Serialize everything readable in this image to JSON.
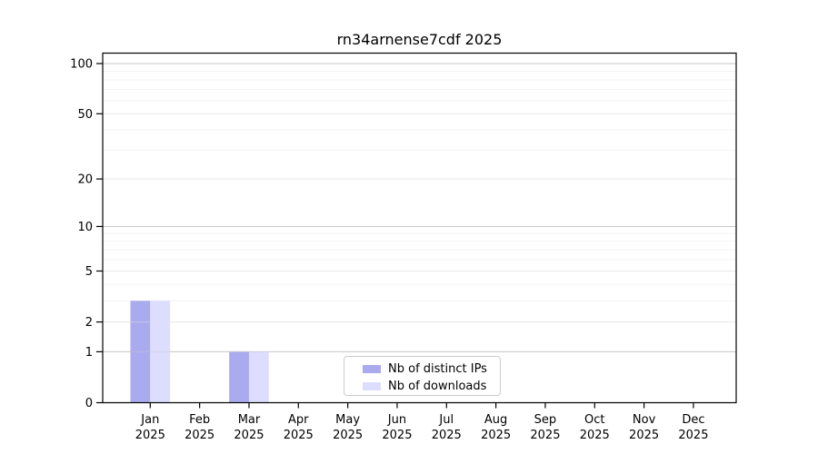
{
  "chart_data": {
    "type": "bar",
    "title": "rn34arnense7cdf 2025",
    "year": "2025",
    "categories": [
      "Jan",
      "Feb",
      "Mar",
      "Apr",
      "May",
      "Jun",
      "Jul",
      "Aug",
      "Sep",
      "Oct",
      "Nov",
      "Dec"
    ],
    "series": [
      {
        "name": "Nb of distinct IPs",
        "color": "#aaaaee",
        "values": [
          3,
          0,
          1,
          0,
          0,
          0,
          0,
          0,
          0,
          0,
          0,
          0
        ]
      },
      {
        "name": "Nb of downloads",
        "color": "#ddddff",
        "values": [
          3,
          0,
          1,
          0,
          0,
          0,
          0,
          0,
          0,
          0,
          0,
          0
        ]
      }
    ],
    "yscale": "log1p",
    "ylim": [
      0,
      116
    ],
    "yticks": [
      0,
      1,
      2,
      5,
      10,
      20,
      50,
      100
    ],
    "yminor": [
      3,
      4,
      6,
      7,
      8,
      9,
      30,
      40,
      60,
      70,
      80,
      90
    ],
    "grid": {
      "on": true,
      "pow10_color": "#c9c9c9",
      "major_color": "#e9e9e9",
      "minor_color": "#f3f3f3"
    },
    "legend_position": "bottom-center",
    "axis_color": "#000000",
    "text_color": "#000000"
  }
}
